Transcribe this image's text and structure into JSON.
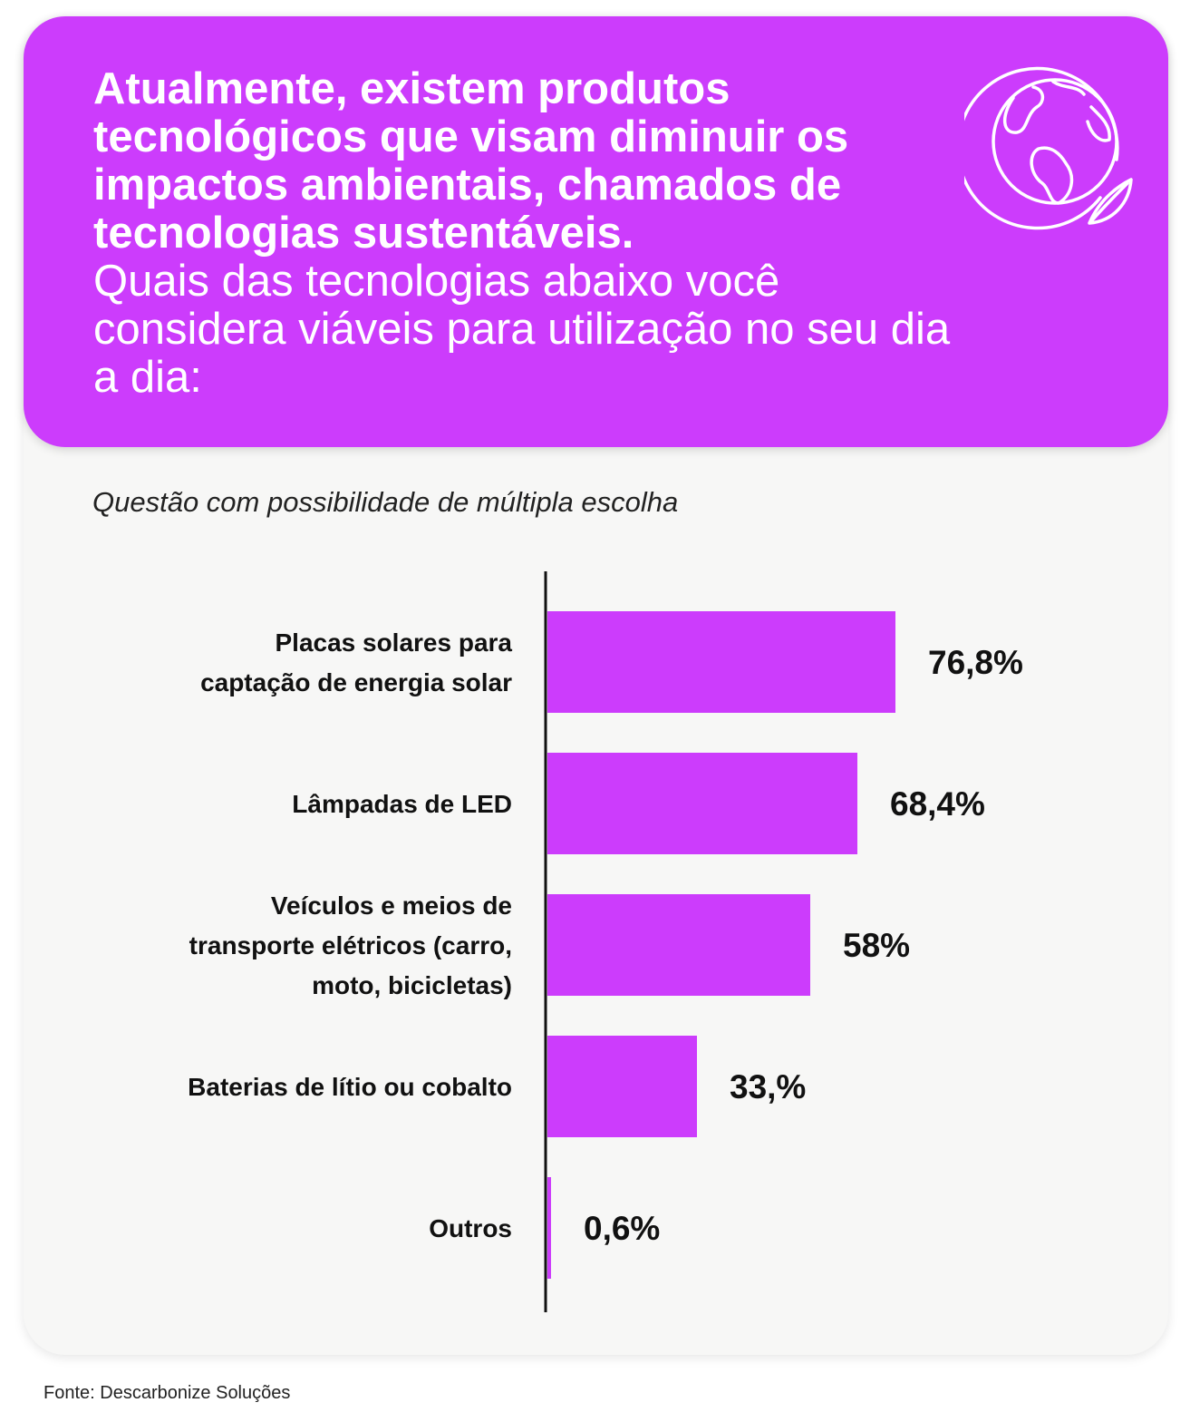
{
  "header": {
    "question_bold": "Atualmente, existem produtos tecnológicos que visam diminuir os impactos ambientais, chamados de tecnologias sustentáveis.",
    "question_light": "Quais das tecnologias abaixo você considera viáveis para utilização no seu dia a dia:",
    "icon": "globe-leaf-icon"
  },
  "note": "Questão com possibilidade de múltipla escolha",
  "source": "Fonte: Descarbonize Soluções",
  "colors": {
    "accent": "#cc3cfc",
    "card_bg": "#f7f7f6",
    "text": "#111111"
  },
  "chart_data": {
    "type": "bar",
    "orientation": "horizontal",
    "categories": [
      [
        "Placas solares para",
        "captação de energia solar"
      ],
      [
        "Lâmpadas de LED"
      ],
      [
        "Veículos e meios de",
        "transporte elétricos (carro,",
        "moto, bicicletas)"
      ],
      [
        "Baterias de lítio ou cobalto"
      ],
      [
        "Outros"
      ]
    ],
    "values": [
      76.8,
      68.4,
      58,
      33,
      0.6
    ],
    "value_labels": [
      "76,8%",
      "68,4%",
      "58%",
      "33,%",
      "0,6%"
    ],
    "xlim": [
      0,
      100
    ],
    "grid": false,
    "legend": "none"
  }
}
